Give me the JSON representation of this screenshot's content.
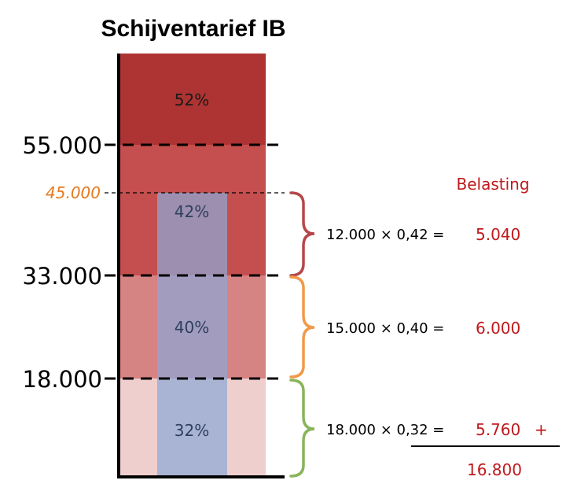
{
  "title": "Schijventarief IB",
  "ticks": {
    "t55000": "55.000",
    "t45000": "45.000",
    "t33000": "33.000",
    "t18000": "18.000"
  },
  "brackets": [
    {
      "rate": "52%",
      "color": "#ad3432"
    },
    {
      "rate": "42%",
      "color": "#c44f4e"
    },
    {
      "rate": "40%",
      "color": "#d68383"
    },
    {
      "rate": "32%",
      "color": "#efcfce"
    }
  ],
  "belasting_label": "Belasting",
  "rows": [
    {
      "calc": "12.000 × 0,42 =",
      "amount": "5.040",
      "brace_color": "#b5474a"
    },
    {
      "calc": "15.000 × 0,40 =",
      "amount": "6.000",
      "brace_color": "#f09a4a"
    },
    {
      "calc": "18.000 × 0,32 =",
      "amount": "5.760",
      "brace_color": "#8ab45a"
    }
  ],
  "plus": "+",
  "total": "16.800",
  "colors": {
    "income_overlay": "#8da7d6",
    "dashed_line": "#000000",
    "orange": "#e67a1e",
    "amount_red": "#c0181c"
  }
}
